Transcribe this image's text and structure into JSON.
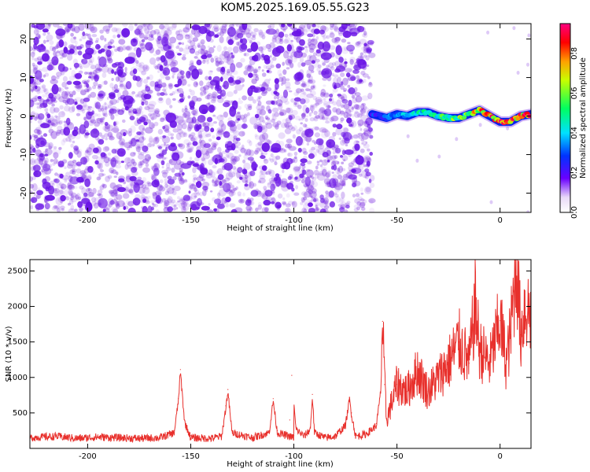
{
  "title": "KOM5.2025.169.05.55.G23",
  "colors": {
    "spectrogram_noise": "#7a2be0",
    "snr_line": "#e8302c",
    "axis": "#000000"
  },
  "chart_data": [
    {
      "type": "heatmap",
      "xlabel": "Height of straight line (km)",
      "ylabel": "Frequency (Hz)",
      "xlim": [
        -228,
        15
      ],
      "ylim": [
        -25,
        24
      ],
      "xticks": [
        -200,
        -150,
        -100,
        -50,
        0
      ],
      "yticks": [
        20,
        10,
        0,
        -10,
        -20
      ],
      "colorbar": {
        "label": "Normalized spectral amplitude",
        "range": [
          0.0,
          0.95
        ],
        "ticks": [
          0.0,
          0.2,
          0.4,
          0.6,
          0.8
        ],
        "colormap": "rainbow"
      },
      "noise_region_x": [
        -228,
        -62
      ],
      "signal_track": {
        "x": [
          -62,
          -55,
          -50,
          -45,
          -40,
          -35,
          -30,
          -25,
          -20,
          -15,
          -10,
          -5,
          0,
          5,
          10,
          15
        ],
        "freq": [
          0.5,
          -0.5,
          0.5,
          0.0,
          1.0,
          1.0,
          0.0,
          -0.5,
          -0.5,
          0.5,
          1.5,
          0.0,
          -1.5,
          -1.5,
          0.0,
          0.5
        ],
        "amplitude": [
          0.2,
          0.25,
          0.3,
          0.35,
          0.4,
          0.45,
          0.5,
          0.55,
          0.6,
          0.65,
          0.75,
          0.8,
          0.9,
          0.85,
          0.9,
          0.95
        ]
      }
    },
    {
      "type": "line",
      "xlabel": "Height of straight line (km)",
      "ylabel": "SNR (10 * v/v)",
      "xlim": [
        -228,
        15
      ],
      "ylim": [
        0,
        2660
      ],
      "xticks": [
        -200,
        -150,
        -100,
        -50,
        0
      ],
      "yticks": [
        500,
        1000,
        1500,
        2000,
        2500
      ],
      "baseline": 160,
      "series": [
        {
          "x": [
            -228,
            -215,
            -205,
            -195,
            -185,
            -175,
            -165,
            -158,
            -156,
            -155,
            -153,
            -150,
            -140,
            -135,
            -133,
            -132,
            -130,
            -120,
            -112,
            -110,
            -108,
            -100,
            -102,
            -101,
            -99,
            -95,
            -92,
            -91,
            -90,
            -85,
            -80,
            -75,
            -73,
            -72,
            -70,
            -65,
            -60,
            -58,
            -57,
            -56,
            -55,
            -50,
            -45,
            -40,
            -35,
            -30,
            -25,
            -20,
            -15,
            -12,
            -10,
            -5,
            0,
            3,
            5,
            8,
            10,
            12,
            15
          ],
          "y": [
            180,
            200,
            170,
            190,
            180,
            170,
            180,
            250,
            700,
            1110,
            400,
            180,
            170,
            200,
            600,
            830,
            250,
            180,
            250,
            700,
            250,
            180,
            400,
            1030,
            300,
            200,
            300,
            760,
            250,
            180,
            200,
            350,
            720,
            500,
            200,
            230,
            350,
            800,
            1790,
            900,
            400,
            900,
            800,
            1100,
            800,
            1000,
            1200,
            1500,
            1200,
            2030,
            1400,
            1200,
            1800,
            1200,
            1600,
            2660,
            1600,
            2000,
            1900
          ]
        }
      ]
    }
  ]
}
